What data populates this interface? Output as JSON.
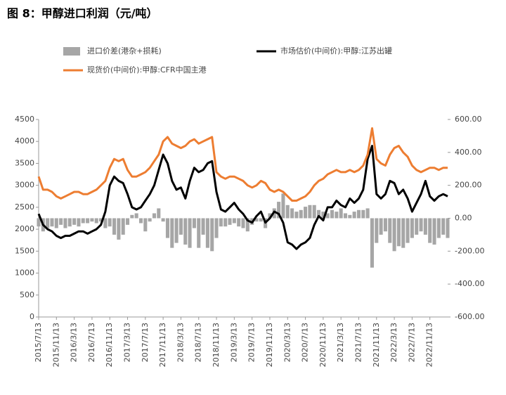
{
  "chart_data": {
    "type": "combo",
    "title": "图 8：甲醇进口利润（元/吨）",
    "categories": [
      "2015/7/13",
      null,
      null,
      null,
      "2015/11/13",
      null,
      null,
      null,
      "2016/3/13",
      null,
      null,
      null,
      "2016/7/13",
      null,
      null,
      null,
      "2016/11/13",
      null,
      null,
      null,
      "2017/3/13",
      null,
      null,
      null,
      "2017/7/13",
      null,
      null,
      null,
      "2017/11/13",
      null,
      null,
      null,
      "2018/3/13",
      null,
      null,
      null,
      "2018/7/13",
      null,
      null,
      null,
      "2018/11/13",
      null,
      null,
      null,
      "2019/3/13",
      null,
      null,
      null,
      "2019/7/13",
      null,
      null,
      null,
      "2019/11/13",
      null,
      null,
      null,
      "2020/3/13",
      null,
      null,
      null,
      "2020/7/13",
      null,
      null,
      null,
      "2020/11/13",
      null,
      null,
      null,
      "2021/3/13",
      null,
      null,
      null,
      "2021/7/13",
      null,
      null,
      null,
      "2021/11/13",
      null,
      null,
      null,
      "2022/3/13",
      null,
      null,
      null,
      "2022/7/13",
      null,
      null,
      null,
      "2022/11/13",
      null,
      null,
      null,
      null
    ],
    "series": [
      {
        "name": "进口价差(港杂+损耗)",
        "type": "bar",
        "axis": "y2",
        "color": "#a6a6a6",
        "values": [
          -50,
          -80,
          -60,
          -50,
          -60,
          -40,
          -60,
          -50,
          -40,
          -50,
          -30,
          -30,
          -20,
          -30,
          -20,
          -60,
          -50,
          -100,
          -130,
          -100,
          -40,
          20,
          30,
          -30,
          -80,
          -20,
          30,
          60,
          -20,
          -120,
          -180,
          -150,
          -100,
          -160,
          -180,
          -60,
          -180,
          -100,
          -180,
          -200,
          -120,
          -50,
          -50,
          -40,
          -30,
          -50,
          -60,
          -80,
          -40,
          -20,
          -20,
          -60,
          30,
          60,
          100,
          150,
          80,
          60,
          40,
          50,
          70,
          80,
          80,
          50,
          40,
          30,
          50,
          40,
          60,
          30,
          20,
          40,
          50,
          50,
          60,
          -300,
          -150,
          -100,
          -80,
          -150,
          -200,
          -170,
          -180,
          -150,
          -120,
          -100,
          -80,
          -100,
          -150,
          -160,
          -120,
          -100,
          -120
        ]
      },
      {
        "name": "市场估价(中间价):甲醇:江苏出罐",
        "type": "line",
        "color": "#000000",
        "values": [
          2350,
          2100,
          2000,
          1950,
          1850,
          1800,
          1850,
          1850,
          1900,
          1950,
          1950,
          1900,
          1950,
          2000,
          2100,
          2400,
          3000,
          3200,
          3100,
          3050,
          2800,
          2500,
          2450,
          2500,
          2650,
          2800,
          3000,
          3350,
          3700,
          3500,
          3100,
          2900,
          2950,
          2700,
          3100,
          3400,
          3300,
          3350,
          3500,
          3550,
          2850,
          2450,
          2400,
          2500,
          2600,
          2450,
          2350,
          2200,
          2150,
          2300,
          2400,
          2150,
          2250,
          2400,
          2350,
          2150,
          1700,
          1650,
          1550,
          1650,
          1700,
          1800,
          2100,
          2300,
          2200,
          2500,
          2500,
          2650,
          2550,
          2500,
          2700,
          2600,
          2700,
          2900,
          3600,
          3900,
          2800,
          2700,
          2800,
          3100,
          3050,
          2800,
          2900,
          2700,
          2400,
          2600,
          2800,
          3100,
          2750,
          2650,
          2750,
          2800,
          2750
        ]
      },
      {
        "name": "现货价(中间价):甲醇:CFR中国主港",
        "type": "line",
        "color": "#ed7d31",
        "values": [
          3200,
          2900,
          2900,
          2850,
          2750,
          2700,
          2750,
          2800,
          2850,
          2850,
          2800,
          2800,
          2850,
          2900,
          3000,
          3100,
          3400,
          3600,
          3550,
          3600,
          3350,
          3200,
          3200,
          3250,
          3300,
          3400,
          3550,
          3700,
          4000,
          4100,
          3950,
          3900,
          3850,
          3900,
          4000,
          4050,
          3950,
          4000,
          4050,
          4100,
          3300,
          3200,
          3150,
          3200,
          3200,
          3150,
          3100,
          3000,
          2950,
          3000,
          3100,
          3050,
          2900,
          2850,
          2900,
          2850,
          2750,
          2650,
          2650,
          2700,
          2750,
          2850,
          3000,
          3100,
          3150,
          3250,
          3300,
          3350,
          3300,
          3300,
          3350,
          3300,
          3350,
          3450,
          3700,
          4300,
          3600,
          3500,
          3450,
          3700,
          3850,
          3900,
          3750,
          3650,
          3450,
          3350,
          3300,
          3350,
          3400,
          3400,
          3350,
          3400,
          3400
        ]
      }
    ],
    "ylim": [
      0,
      4500
    ],
    "yticks": [
      0,
      500,
      1000,
      1500,
      2000,
      2500,
      3000,
      3500,
      4000,
      4500
    ],
    "y2lim": [
      -600,
      600
    ],
    "y2ticks": [
      {
        "value": -600,
        "label": "-600.00"
      },
      {
        "value": -400,
        "label": "-400.00"
      },
      {
        "value": -200,
        "label": "-200.00"
      },
      {
        "value": 0,
        "label": "0.00"
      },
      {
        "value": 200,
        "label": "200.00"
      },
      {
        "value": 400,
        "label": "400.00"
      },
      {
        "value": 600,
        "label": "600.00"
      }
    ],
    "grid": false
  }
}
